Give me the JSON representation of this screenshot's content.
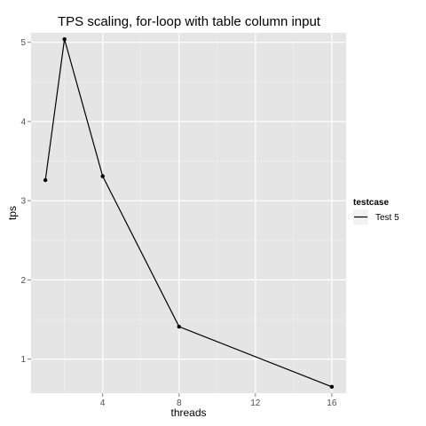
{
  "chart_data": {
    "type": "line",
    "title": "TPS scaling, for-loop with table column input",
    "xlabel": "threads",
    "ylabel": "tps",
    "xlim": [
      0.25,
      16.75
    ],
    "ylim": [
      0.57,
      5.12
    ],
    "x_ticks": [
      4,
      8,
      12,
      16
    ],
    "y_ticks": [
      1,
      2,
      3,
      4,
      5
    ],
    "grid": true,
    "legend": {
      "title": "testcase",
      "position": "right"
    },
    "series": [
      {
        "name": "Test 5",
        "color": "#000000",
        "x": [
          1,
          2,
          4,
          8,
          16
        ],
        "y": [
          3.26,
          5.04,
          3.31,
          1.41,
          0.65
        ]
      }
    ]
  },
  "colors": {
    "panel_background": "#e5e5e5",
    "grid_major": "#ffffff",
    "grid_minor": "#f2f2f2",
    "legend_key_background": "#f2f2f2"
  }
}
